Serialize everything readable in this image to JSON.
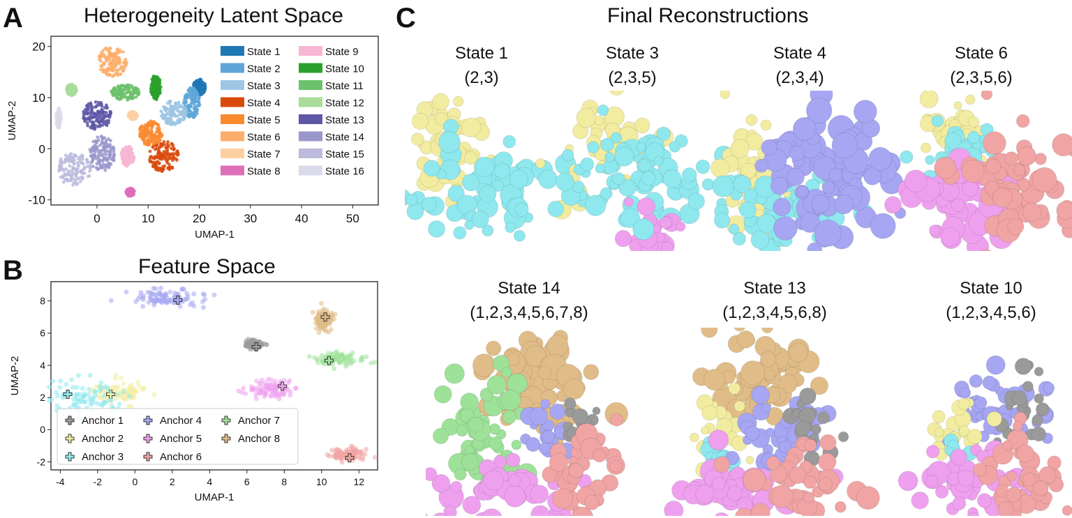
{
  "panel_a": {
    "letter": "A",
    "title": "Heterogeneity Latent Space"
  },
  "panel_b": {
    "letter": "B",
    "title": "Feature Space"
  },
  "panel_c": {
    "letter": "C",
    "title": "Final Reconstructions",
    "states": [
      {
        "name": "State 1",
        "anchors": "(2,3)"
      },
      {
        "name": "State 3",
        "anchors": "(2,3,5)"
      },
      {
        "name": "State 4",
        "anchors": "(2,3,4)"
      },
      {
        "name": "State 6",
        "anchors": "(2,3,5,6)"
      },
      {
        "name": "State 14",
        "anchors": "(1,2,3,4,5,6,7,8)"
      },
      {
        "name": "State 13",
        "anchors": "(1,2,3,4,5,6,8)"
      },
      {
        "name": "State 10",
        "anchors": "(1,2,3,4,5,6)"
      }
    ]
  },
  "anchor_colors": {
    "1": "#9a9a9a",
    "2": "#f2eca0",
    "3": "#8ee8ee",
    "4": "#a6a6f2",
    "5": "#eea0ee",
    "6": "#f0a4a4",
    "7": "#9ee29a",
    "8": "#e0bc88"
  },
  "chart_data": [
    {
      "type": "scatter",
      "title": "Heterogeneity Latent Space",
      "xlabel": "UMAP-1",
      "ylabel": "UMAP-2",
      "xlim": [
        -9,
        55
      ],
      "ylim": [
        -11,
        22
      ],
      "xticks": [
        0,
        10,
        20,
        30,
        40,
        50
      ],
      "yticks": [
        -10,
        0,
        10,
        20
      ],
      "legend": "inside-right",
      "series": [
        {
          "name": "State 1",
          "color": "#1f77b4",
          "center": [
            20,
            12
          ],
          "spread": [
            1.2,
            1.6
          ]
        },
        {
          "name": "State 2",
          "color": "#5ea6d8",
          "center": [
            18.5,
            9
          ],
          "spread": [
            1.6,
            3
          ]
        },
        {
          "name": "State 3",
          "color": "#9dc6e3",
          "center": [
            15,
            7
          ],
          "spread": [
            2.5,
            2.4
          ]
        },
        {
          "name": "State 4",
          "color": "#d94a0a",
          "center": [
            13,
            -1.5
          ],
          "spread": [
            3,
            3
          ]
        },
        {
          "name": "State 5",
          "color": "#fb8a2f",
          "center": [
            10.5,
            3
          ],
          "spread": [
            2.3,
            2.4
          ]
        },
        {
          "name": "State 6",
          "color": "#fdae6b",
          "center": [
            3,
            17
          ],
          "spread": [
            2.8,
            3
          ]
        },
        {
          "name": "State 7",
          "color": "#fdd0a2",
          "center": [
            7,
            6.5
          ],
          "spread": [
            0.9,
            0.8
          ]
        },
        {
          "name": "State 8",
          "color": "#de6fb8",
          "center": [
            6.5,
            -8.5
          ],
          "spread": [
            0.8,
            0.8
          ]
        },
        {
          "name": "State 9",
          "color": "#f7b6d2",
          "center": [
            6,
            -1.5
          ],
          "spread": [
            1.3,
            2
          ]
        },
        {
          "name": "State 10",
          "color": "#2ca02c",
          "center": [
            11.5,
            12
          ],
          "spread": [
            1,
            2.4
          ]
        },
        {
          "name": "State 11",
          "color": "#6cc26c",
          "center": [
            5.5,
            11
          ],
          "spread": [
            2.8,
            1.5
          ]
        },
        {
          "name": "State 12",
          "color": "#a7dc9a",
          "center": [
            -5,
            11.5
          ],
          "spread": [
            1,
            1.1
          ]
        },
        {
          "name": "State 13",
          "color": "#5e57a6",
          "center": [
            0,
            6.5
          ],
          "spread": [
            2.8,
            2.8
          ]
        },
        {
          "name": "State 14",
          "color": "#9a97cb",
          "center": [
            1,
            -1
          ],
          "spread": [
            2.5,
            3.5
          ]
        },
        {
          "name": "State 15",
          "color": "#bcbbdd",
          "center": [
            -4.5,
            -4
          ],
          "spread": [
            3.3,
            3.2
          ]
        },
        {
          "name": "State 16",
          "color": "#dadaeb",
          "center": [
            -7.5,
            6
          ],
          "spread": [
            0.5,
            2
          ]
        }
      ]
    },
    {
      "type": "scatter",
      "title": "Feature Space",
      "xlabel": "UMAP-1",
      "ylabel": "UMAP-2",
      "xlim": [
        -4.5,
        13
      ],
      "ylim": [
        -2.5,
        9.2
      ],
      "xticks": [
        -4,
        -2,
        0,
        2,
        4,
        6,
        8,
        10,
        12
      ],
      "yticks": [
        -2,
        0,
        2,
        4,
        6,
        8
      ],
      "legend": "lower-left",
      "series": [
        {
          "name": "Anchor 1",
          "color": "#9a9a9a",
          "anchor": [
            6.5,
            5.15
          ],
          "center": [
            6.4,
            5.3
          ],
          "spread": [
            0.35,
            0.2
          ]
        },
        {
          "name": "Anchor 2",
          "color": "#f2eca0",
          "anchor": [
            -1.3,
            2.2
          ],
          "center": [
            -0.8,
            2.3
          ],
          "spread": [
            0.9,
            0.55
          ]
        },
        {
          "name": "Anchor 3",
          "color": "#8ee8ee",
          "anchor": [
            -3.6,
            2.2
          ],
          "center": [
            -2.7,
            2.0
          ],
          "spread": [
            1.3,
            0.9
          ]
        },
        {
          "name": "Anchor 4",
          "color": "#a6a6f2",
          "anchor": [
            2.3,
            8.05
          ],
          "center": [
            1.6,
            8.2
          ],
          "spread": [
            1.6,
            0.4
          ]
        },
        {
          "name": "Anchor 5",
          "color": "#eea0ee",
          "anchor": [
            7.9,
            2.7
          ],
          "center": [
            7.3,
            2.5
          ],
          "spread": [
            1.2,
            0.4
          ]
        },
        {
          "name": "Anchor 6",
          "color": "#f0a4a4",
          "anchor": [
            11.5,
            -1.75
          ],
          "center": [
            11.5,
            -1.5
          ],
          "spread": [
            0.7,
            0.25
          ]
        },
        {
          "name": "Anchor 7",
          "color": "#9ee29a",
          "anchor": [
            10.4,
            4.3
          ],
          "center": [
            11.0,
            4.4
          ],
          "spread": [
            0.9,
            0.3
          ]
        },
        {
          "name": "Anchor 8",
          "color": "#e0bc88",
          "anchor": [
            10.2,
            7.0
          ],
          "center": [
            10.1,
            6.8
          ],
          "spread": [
            0.35,
            0.45
          ]
        }
      ]
    }
  ]
}
